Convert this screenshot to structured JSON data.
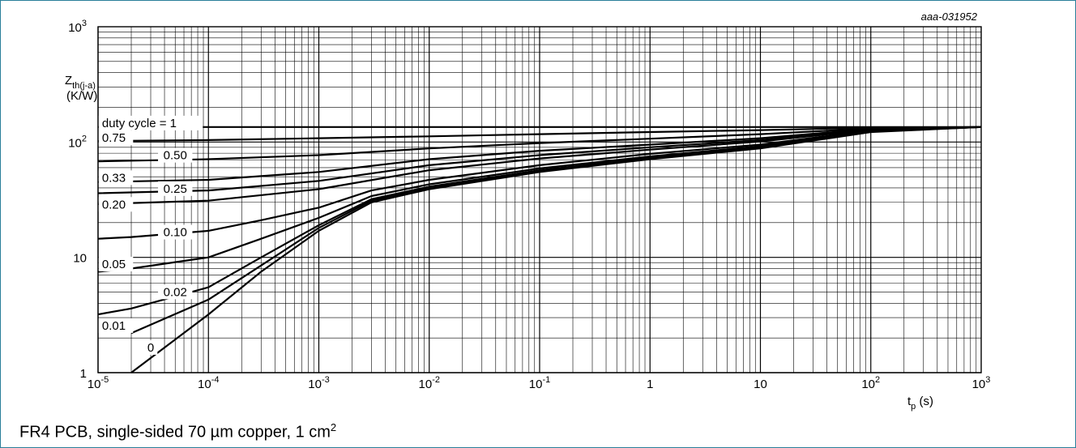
{
  "figure_code": "aaa-031952",
  "caption": {
    "text": "FR4 PCB, single-sided 70 µm copper, 1 cm",
    "sup": "2"
  },
  "colors": {
    "frame": "#2a7f9a",
    "grid": "#000000",
    "curve": "#000000"
  },
  "chart_data": {
    "type": "line",
    "title": "",
    "xscale": "log",
    "yscale": "log",
    "xlim": [
      1e-05,
      1000
    ],
    "ylim": [
      1,
      1000
    ],
    "grid": true,
    "legend": "none",
    "x_tick_labels": [
      {
        "value": 1e-05,
        "base": "10",
        "exp": "-5"
      },
      {
        "value": 0.0001,
        "base": "10",
        "exp": "-4"
      },
      {
        "value": 0.001,
        "base": "10",
        "exp": "-3"
      },
      {
        "value": 0.01,
        "base": "10",
        "exp": "-2"
      },
      {
        "value": 0.1,
        "base": "10",
        "exp": "-1"
      },
      {
        "value": 1,
        "base": "1",
        "exp": ""
      },
      {
        "value": 10,
        "base": "10",
        "exp": ""
      },
      {
        "value": 100,
        "base": "10",
        "exp": "2"
      },
      {
        "value": 1000,
        "base": "10",
        "exp": "3"
      }
    ],
    "y_tick_labels": [
      {
        "value": 1,
        "base": "1",
        "exp": ""
      },
      {
        "value": 10,
        "base": "10",
        "exp": ""
      },
      {
        "value": 100,
        "base": "10",
        "exp": "2"
      },
      {
        "value": 1000,
        "base": "10",
        "exp": "3"
      }
    ],
    "xlabel": {
      "main": "t",
      "sub": "p",
      "unit": " (s)"
    },
    "ylabel": {
      "main": "Z",
      "sub": "th(j-a)",
      "unit": "(K/W)"
    },
    "series_prefix": "duty cycle = ",
    "series": [
      {
        "name": "1",
        "x": [
          1e-05,
          0.0001,
          0.001,
          0.01,
          0.1,
          1,
          10,
          100,
          1000
        ],
        "y": [
          135,
          135,
          135,
          135,
          135,
          135,
          135,
          135,
          135
        ]
      },
      {
        "name": "0.75",
        "x": [
          1e-05,
          0.0001,
          0.001,
          0.01,
          0.1,
          1,
          10,
          100,
          1000
        ],
        "y": [
          102,
          104,
          108,
          112,
          117,
          122,
          127,
          133,
          135
        ]
      },
      {
        "name": "0.50",
        "x": [
          1e-05,
          0.0001,
          0.001,
          0.01,
          0.1,
          1,
          10,
          100,
          1000
        ],
        "y": [
          68,
          71,
          77,
          88,
          98,
          107,
          117,
          131,
          135
        ]
      },
      {
        "name": "0.33",
        "x": [
          1e-05,
          0.0001,
          0.001,
          0.01,
          0.1,
          1,
          10,
          100,
          1000
        ],
        "y": [
          45,
          47,
          55,
          71,
          84,
          95,
          108,
          130,
          135
        ]
      },
      {
        "name": "0.25",
        "x": [
          1e-05,
          0.0001,
          0.001,
          0.01,
          0.1,
          1,
          10,
          100,
          1000
        ],
        "y": [
          36,
          38,
          46,
          63,
          77,
          90,
          104,
          129,
          135
        ]
      },
      {
        "name": "0.20",
        "x": [
          1e-05,
          0.0001,
          0.001,
          0.01,
          0.1,
          1,
          10,
          100,
          1000
        ],
        "y": [
          29,
          31,
          39,
          57,
          72,
          86,
          101,
          128,
          135
        ]
      },
      {
        "name": "0.10",
        "x": [
          1e-05,
          2e-05,
          0.0001,
          0.0003,
          0.001,
          0.003,
          0.01,
          0.1,
          1,
          10,
          100,
          1000
        ],
        "y": [
          14.5,
          15,
          17,
          21,
          27,
          38,
          47,
          63,
          79,
          95,
          126,
          135
        ]
      },
      {
        "name": "0.05",
        "x": [
          1e-05,
          2e-05,
          0.0001,
          0.0003,
          0.001,
          0.003,
          0.01,
          0.1,
          1,
          10,
          100,
          1000
        ],
        "y": [
          7.5,
          8,
          10,
          14.5,
          22,
          34,
          43,
          59,
          75,
          92,
          125,
          135
        ]
      },
      {
        "name": "0.02",
        "x": [
          1e-05,
          2e-05,
          0.0001,
          0.0003,
          0.001,
          0.003,
          0.01,
          0.1,
          1,
          10,
          100,
          1000
        ],
        "y": [
          3.2,
          3.6,
          5.5,
          10,
          19,
          32,
          41,
          57,
          73,
          90,
          124,
          135
        ]
      },
      {
        "name": "0.01",
        "x": [
          2e-05,
          0.0001,
          0.0003,
          0.001,
          0.003,
          0.01,
          0.1,
          1,
          10,
          100,
          1000
        ],
        "y": [
          2.2,
          4.3,
          8.5,
          18,
          31,
          40,
          56,
          72,
          89,
          123,
          135
        ]
      },
      {
        "name": "0",
        "x": [
          2e-05,
          0.0001,
          0.0003,
          0.001,
          0.003,
          0.01,
          0.1,
          1,
          10,
          100,
          1000
        ],
        "y": [
          1,
          3.2,
          7.5,
          17,
          30,
          39,
          55,
          71,
          88,
          122,
          135
        ]
      }
    ]
  }
}
